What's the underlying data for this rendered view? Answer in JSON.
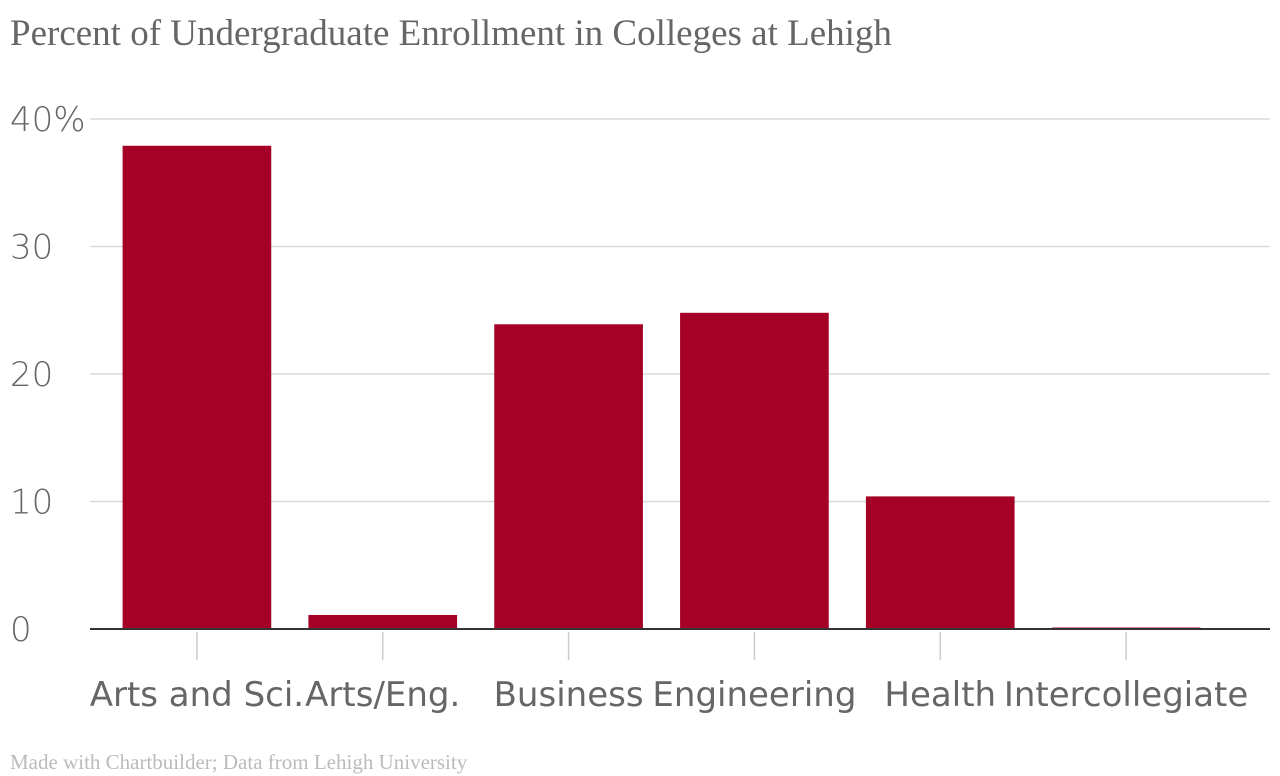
{
  "chart_data": {
    "type": "bar",
    "title": "Percent of Undergraduate Enrollment in Colleges at Lehigh",
    "xlabel": "",
    "ylabel": "",
    "categories": [
      "Arts and Sci.",
      "Arts/Eng.",
      "Business",
      "Engineering",
      "Health",
      "Intercollegiate"
    ],
    "values": [
      37.9,
      1.1,
      23.9,
      24.8,
      10.4,
      0.1
    ],
    "ylim": [
      0,
      40
    ],
    "yticks": [
      0,
      10,
      20,
      30,
      40
    ],
    "ytick_labels": [
      "0",
      "10",
      "20",
      "30",
      "40%"
    ],
    "grid": true,
    "legend": "none",
    "bar_color": "#a50026",
    "credit": "Made with Chartbuilder; Data from Lehigh University"
  }
}
